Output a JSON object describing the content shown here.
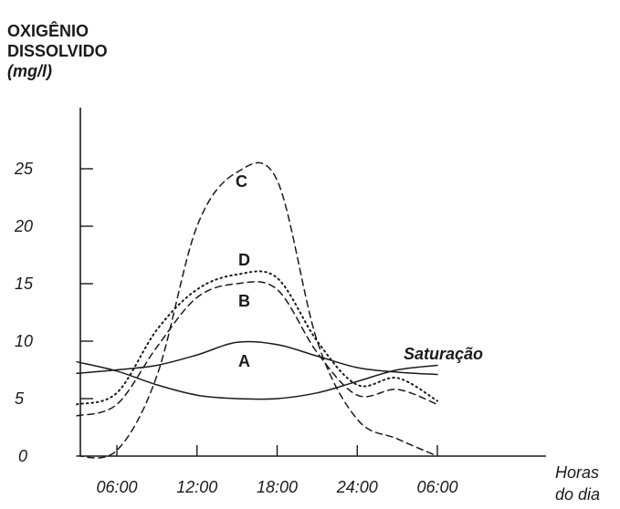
{
  "chart_data": {
    "type": "line",
    "ylabel_lines": [
      "OXIGÊNIO",
      "DISSOLVIDO",
      "(mg/l)"
    ],
    "xlabel_lines": [
      "Horas",
      "do dia"
    ],
    "x_ticks": [
      "06:00",
      "12:00",
      "18:00",
      "24:00",
      "06:00"
    ],
    "y_ticks": [
      "0",
      "5",
      "10",
      "15",
      "20",
      "25"
    ],
    "ylim": [
      0,
      25
    ],
    "grid": false,
    "colors": {
      "ink": "#1a1a1a",
      "background": "#ffffff"
    },
    "series": [
      {
        "name": "A",
        "style": "solid",
        "x": [
          "03:00",
          "06:00",
          "09:00",
          "12:00",
          "15:00",
          "18:00",
          "21:00",
          "24:00",
          "03:00",
          "06:00"
        ],
        "values": [
          7.2,
          7.5,
          7.9,
          8.8,
          9.9,
          9.7,
          8.7,
          7.7,
          7.3,
          7.1
        ]
      },
      {
        "name": "Saturação",
        "style": "solid",
        "x": [
          "03:00",
          "06:00",
          "09:00",
          "12:00",
          "15:00",
          "18:00",
          "21:00",
          "24:00",
          "03:00",
          "06:00"
        ],
        "values": [
          8.2,
          7.4,
          6.2,
          5.3,
          5.0,
          5.0,
          5.5,
          6.5,
          7.5,
          7.9
        ]
      },
      {
        "name": "B",
        "style": "dashed",
        "x": [
          "03:00",
          "06:00",
          "09:00",
          "12:00",
          "15:00",
          "18:00",
          "21:00",
          "24:00",
          "03:00",
          "06:00"
        ],
        "values": [
          3.5,
          4.5,
          9.5,
          13.8,
          15.0,
          14.5,
          9.0,
          5.3,
          5.8,
          4.5
        ]
      },
      {
        "name": "C",
        "style": "dashed",
        "x": [
          "03:00",
          "06:00",
          "09:00",
          "12:00",
          "15:00",
          "18:00",
          "21:00",
          "24:00",
          "03:00",
          "06:00"
        ],
        "values": [
          0.0,
          0.5,
          7.0,
          20.0,
          24.7,
          24.0,
          10.0,
          3.2,
          1.5,
          0.0
        ]
      },
      {
        "name": "D",
        "style": "dotted",
        "x": [
          "03:00",
          "06:00",
          "09:00",
          "12:00",
          "15:00",
          "18:00",
          "21:00",
          "24:00",
          "03:00",
          "06:00"
        ],
        "values": [
          4.5,
          5.5,
          11.0,
          14.5,
          15.8,
          15.5,
          10.0,
          6.2,
          6.8,
          4.8
        ]
      }
    ]
  }
}
